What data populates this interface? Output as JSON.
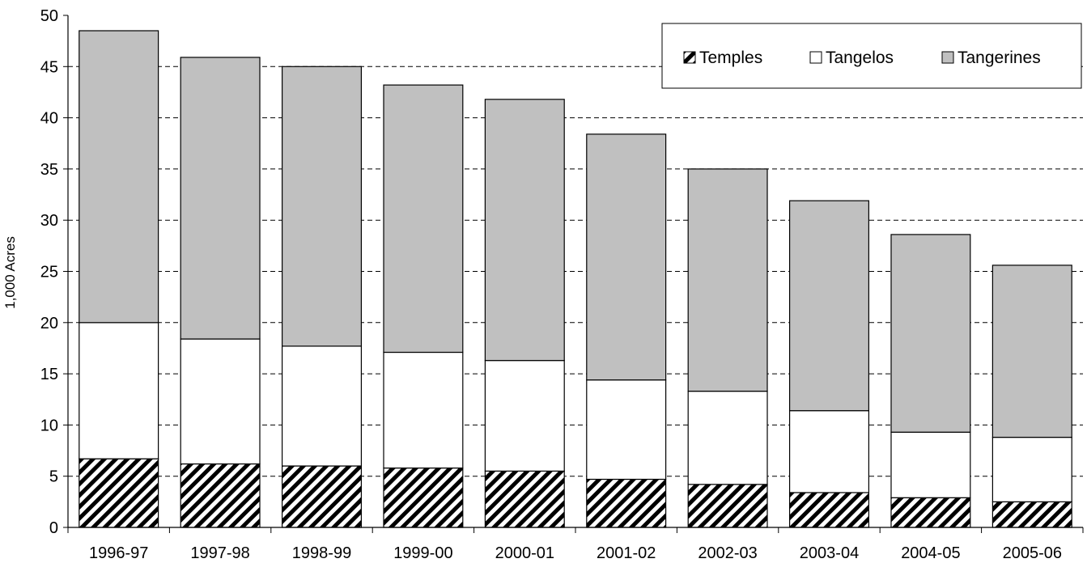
{
  "chart_data": {
    "type": "bar",
    "stacked": true,
    "categories": [
      "1996-97",
      "1997-98",
      "1998-99",
      "1999-00",
      "2000-01",
      "2001-02",
      "2002-03",
      "2003-04",
      "2004-05",
      "2005-06"
    ],
    "series": [
      {
        "name": "Temples",
        "values": [
          6.7,
          6.2,
          6.0,
          5.8,
          5.5,
          4.7,
          4.2,
          3.4,
          2.9,
          2.5
        ],
        "fill": "hatch"
      },
      {
        "name": "Tangelos",
        "values": [
          13.3,
          12.2,
          11.7,
          11.3,
          10.8,
          9.7,
          9.1,
          8.0,
          6.4,
          6.3
        ],
        "fill": "#ffffff"
      },
      {
        "name": "Tangerines",
        "values": [
          28.5,
          27.5,
          27.3,
          26.1,
          25.5,
          24.0,
          21.7,
          20.5,
          19.3,
          16.8
        ],
        "fill": "#c0c0c0"
      }
    ],
    "xlabel": "",
    "ylabel": "1,000 Acres",
    "ylim": [
      0,
      50
    ],
    "yticks": [
      "0",
      "5",
      "10",
      "15",
      "20",
      "25",
      "30",
      "35",
      "40",
      "45",
      "50"
    ],
    "grid": "horizontal dashed",
    "legend_position": "top-right"
  }
}
